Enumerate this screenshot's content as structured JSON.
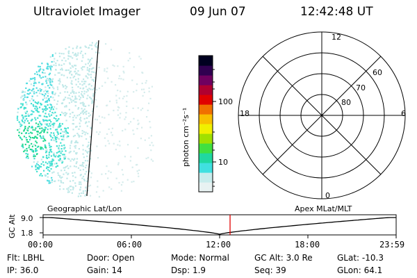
{
  "header": {
    "instrument": "Ultraviolet Imager",
    "date": "09 Jun 07",
    "time": "12:42:48 UT"
  },
  "colorbar": {
    "unit_label": "photon cm⁻²s⁻¹",
    "ticks": [
      "100",
      "10"
    ],
    "colors": [
      "#e8f2f2",
      "#c8ecec",
      "#40e0e0",
      "#20d8a0",
      "#40e040",
      "#a0e000",
      "#f0f000",
      "#f8c000",
      "#f07000",
      "#e00000",
      "#b00030",
      "#700060",
      "#300050",
      "#000020"
    ]
  },
  "polar_plot": {
    "mlt_labels": {
      "top": "12",
      "left": "18",
      "right": "6",
      "bottom": "0"
    },
    "lat_labels": [
      "60",
      "70",
      "80"
    ]
  },
  "track": {
    "left_title": "Geographic Lat/Lon",
    "right_title": "Apex MLat/MLT",
    "y_axis_label": "GC Alt",
    "y_ticks": [
      "9.0",
      "1.8"
    ],
    "x_ticks": [
      "00:00",
      "06:00",
      "12:00",
      "18:00",
      "23:59"
    ],
    "current_time_hours": 12.71
  },
  "status": {
    "flt": "Flt: LBHL",
    "door": "Door: Open",
    "mode": "Mode: Normal",
    "gc_alt": "GC Alt: 3.0 Re",
    "glat": "GLat: -10.3",
    "ip": "IP: 36.0",
    "gain": "Gain: 14",
    "dsp": "Dsp:    1.9",
    "seq": "Seq: 39",
    "glon": "GLon:  64.1"
  }
}
